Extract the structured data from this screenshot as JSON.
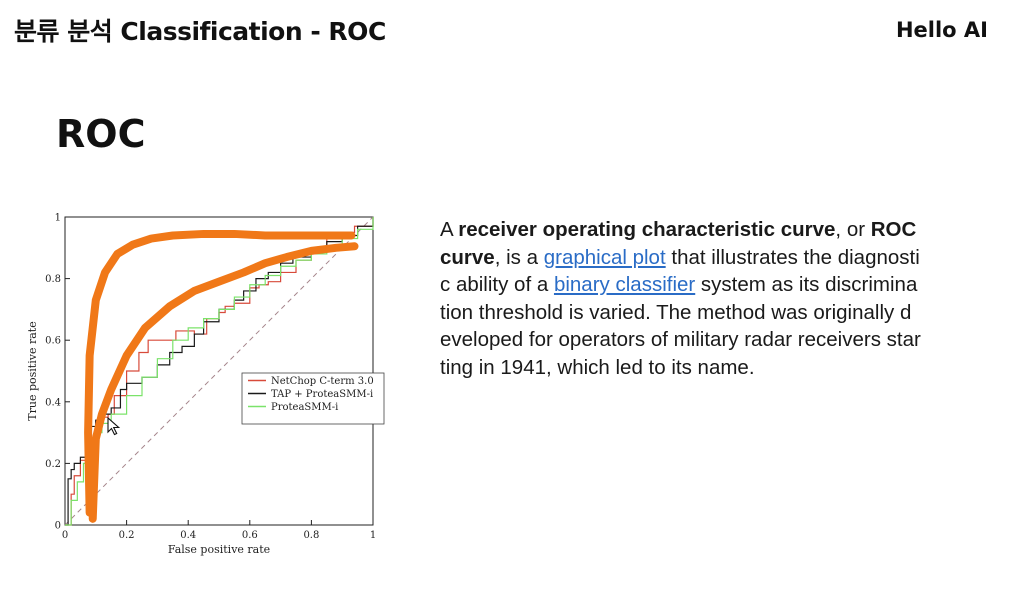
{
  "header": {
    "title": "분류 분석 Classification - ROC",
    "brand": "Hello AI"
  },
  "slide": {
    "title": "ROC"
  },
  "description": {
    "lines": [
      [
        {
          "t": "A "
        },
        {
          "t": "receiver operating characteristic curve",
          "b": true
        },
        {
          "t": ", or "
        },
        {
          "t": "ROC",
          "b": true
        }
      ],
      [
        {
          "t": "curve",
          "b": true
        },
        {
          "t": ", is a "
        },
        {
          "t": "graphical plot",
          "link": true
        },
        {
          "t": " that illustrates the diagnosti"
        }
      ],
      [
        {
          "t": "c ability of a "
        },
        {
          "t": "binary classifier",
          "link": true
        },
        {
          "t": " system as its discrimina"
        }
      ],
      [
        {
          "t": "tion threshold is varied. The method was originally d"
        }
      ],
      [
        {
          "t": "eveloped for operators of military radar receivers star"
        }
      ],
      [
        {
          "t": "ting in 1941, which led to its name."
        }
      ]
    ]
  },
  "chart_data": {
    "type": "line",
    "xlabel": "False positive rate",
    "ylabel": "True positive rate",
    "xlim": [
      0,
      1
    ],
    "ylim": [
      0,
      1
    ],
    "xticks": [
      "0",
      "0.2",
      "0.4",
      "0.6",
      "0.8",
      "1"
    ],
    "yticks": [
      "0",
      "0.2",
      "0.4",
      "0.6",
      "0.8",
      "1"
    ],
    "legend_position": "center-right",
    "series": [
      {
        "name": "NetChop C-term 3.0",
        "color": "#d84a3a",
        "x": [
          0,
          0.02,
          0.03,
          0.05,
          0.08,
          0.1,
          0.12,
          0.14,
          0.16,
          0.2,
          0.22,
          0.24,
          0.27,
          0.3,
          0.33,
          0.36,
          0.38,
          0.42,
          0.46,
          0.5,
          0.52,
          0.55,
          0.6,
          0.63,
          0.66,
          0.7,
          0.75,
          0.8,
          0.85,
          0.9,
          0.94,
          1
        ],
        "y": [
          0,
          0.1,
          0.16,
          0.21,
          0.28,
          0.34,
          0.35,
          0.36,
          0.42,
          0.5,
          0.5,
          0.56,
          0.6,
          0.6,
          0.6,
          0.63,
          0.63,
          0.62,
          0.67,
          0.69,
          0.71,
          0.72,
          0.77,
          0.78,
          0.79,
          0.82,
          0.86,
          0.9,
          0.93,
          0.95,
          0.97,
          1
        ]
      },
      {
        "name": "TAP + ProteaSMM-i",
        "color": "#1a1a1a",
        "x": [
          0,
          0.01,
          0.02,
          0.03,
          0.05,
          0.07,
          0.08,
          0.1,
          0.12,
          0.15,
          0.18,
          0.2,
          0.25,
          0.3,
          0.34,
          0.38,
          0.42,
          0.45,
          0.5,
          0.55,
          0.58,
          0.62,
          0.66,
          0.7,
          0.74,
          0.8,
          0.85,
          0.9,
          0.95,
          1
        ],
        "y": [
          0,
          0.15,
          0.18,
          0.2,
          0.22,
          0.26,
          0.32,
          0.34,
          0.36,
          0.38,
          0.44,
          0.46,
          0.48,
          0.52,
          0.56,
          0.58,
          0.62,
          0.66,
          0.7,
          0.73,
          0.76,
          0.8,
          0.82,
          0.85,
          0.87,
          0.9,
          0.92,
          0.94,
          0.97,
          1
        ]
      },
      {
        "name": "ProteaSMM-i",
        "color": "#7be36a",
        "x": [
          0,
          0.02,
          0.04,
          0.06,
          0.08,
          0.1,
          0.12,
          0.15,
          0.2,
          0.25,
          0.3,
          0.35,
          0.4,
          0.45,
          0.5,
          0.55,
          0.6,
          0.65,
          0.7,
          0.75,
          0.8,
          0.85,
          0.9,
          0.95,
          1
        ],
        "y": [
          0,
          0.08,
          0.14,
          0.2,
          0.26,
          0.3,
          0.33,
          0.36,
          0.42,
          0.48,
          0.54,
          0.6,
          0.64,
          0.67,
          0.7,
          0.74,
          0.78,
          0.81,
          0.84,
          0.86,
          0.88,
          0.9,
          0.93,
          0.96,
          1
        ]
      },
      {
        "name": "",
        "color": "#a6868c",
        "dashed": true,
        "x": [
          0,
          1
        ],
        "y": [
          0,
          1
        ]
      }
    ],
    "annotations": [
      {
        "color": "#f07818",
        "x": [
          0.08,
          0.075,
          0.08,
          0.1,
          0.13,
          0.17,
          0.22,
          0.28,
          0.35,
          0.45,
          0.55,
          0.65,
          0.75,
          0.85,
          0.93
        ],
        "y": [
          0.04,
          0.3,
          0.55,
          0.73,
          0.82,
          0.88,
          0.91,
          0.93,
          0.94,
          0.945,
          0.945,
          0.94,
          0.94,
          0.94,
          0.94
        ]
      },
      {
        "color": "#f07818",
        "x": [
          0.09,
          0.1,
          0.12,
          0.15,
          0.2,
          0.26,
          0.34,
          0.42,
          0.5,
          0.58,
          0.65,
          0.72,
          0.8,
          0.88,
          0.94
        ],
        "y": [
          0.02,
          0.28,
          0.36,
          0.44,
          0.55,
          0.64,
          0.71,
          0.76,
          0.79,
          0.82,
          0.85,
          0.87,
          0.89,
          0.9,
          0.905
        ]
      }
    ]
  }
}
